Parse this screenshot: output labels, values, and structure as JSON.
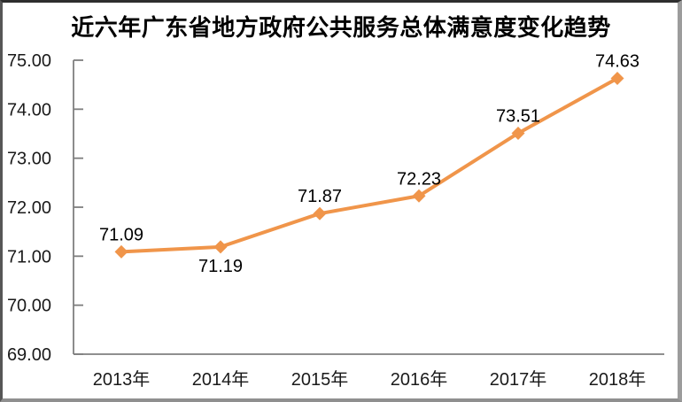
{
  "chart_data": {
    "type": "line",
    "title": "近六年广东省地方政府公共服务总体满意度变化趋势",
    "categories": [
      "2013年",
      "2014年",
      "2015年",
      "2016年",
      "2017年",
      "2018年"
    ],
    "values": [
      71.09,
      71.19,
      71.87,
      72.23,
      73.51,
      74.63
    ],
    "data_labels": [
      "71.09",
      "71.19",
      "71.87",
      "72.23",
      "73.51",
      "74.63"
    ],
    "data_label_positions": [
      "above",
      "below",
      "above",
      "above",
      "above",
      "above"
    ],
    "xlabel": "",
    "ylabel": "",
    "ylim": [
      69,
      75
    ],
    "ytick_values": [
      75,
      74,
      73,
      72,
      71,
      70,
      69
    ],
    "ytick_labels": [
      "75.00",
      "74.00",
      "73.00",
      "72.00",
      "71.00",
      "70.00",
      "69.00"
    ],
    "grid": false,
    "legend": false,
    "marker": "diamond",
    "colors": {
      "line": "#F0954A",
      "marker": "#F0954A",
      "axis": "#7F7F7F",
      "tick_text": "#1A1A1A",
      "title": "#000000",
      "background": "#FFFFFF"
    }
  }
}
